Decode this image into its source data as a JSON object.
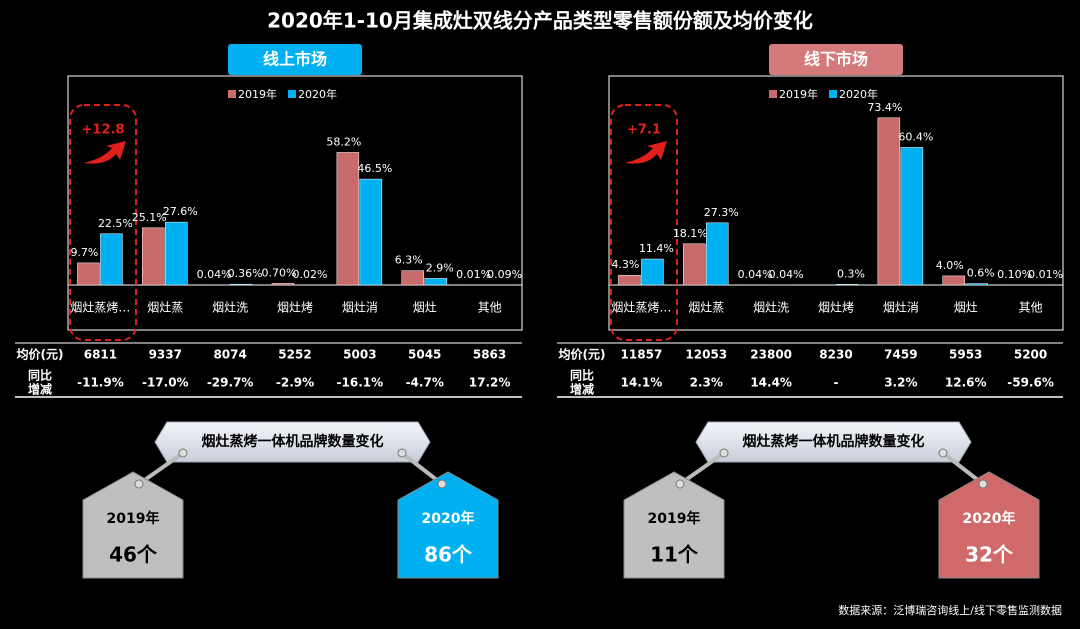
{
  "title": "2020年1-10月集成灶双线分产品类型零售额份额及均价变化",
  "source": "数据来源：泛博瑞咨询线上/线下零售监测数据",
  "chart_data": [
    {
      "type": "bar",
      "title": "线上市场",
      "title_color": "#00b0f0",
      "annotation": "+12.8",
      "categories": [
        "烟灶蒸烤…",
        "烟灶蒸",
        "烟灶洗",
        "烟灶烤",
        "烟灶消",
        "烟灶",
        "其他"
      ],
      "series": [
        {
          "name": "2019年",
          "color": "#c96b6b",
          "values": [
            9.7,
            25.1,
            0.04,
            0.7,
            58.2,
            6.3,
            0.01
          ],
          "value_labels": [
            "9.7%",
            "25.1%",
            "0.04%",
            "0.70%",
            "58.2%",
            "6.3%",
            "0.01%"
          ]
        },
        {
          "name": "2020年",
          "color": "#00b0f0",
          "values": [
            22.5,
            27.6,
            0.36,
            0.02,
            46.5,
            2.9,
            0.09
          ],
          "value_labels": [
            "22.5%",
            "27.6%",
            "0.36%",
            "0.02%",
            "46.5%",
            "2.9%",
            "0.09%"
          ]
        }
      ],
      "ylim": [
        0,
        90
      ],
      "price_label": "均价(元)",
      "prices": [
        6811,
        9337,
        8074,
        5252,
        5003,
        5045,
        5863
      ],
      "yoy_label": [
        "同比",
        "增减"
      ],
      "yoy": [
        "-11.9%",
        "-17.0%",
        "-29.7%",
        "-2.9%",
        "-16.1%",
        "-4.7%",
        "17.2%"
      ],
      "brand_title": "烟灶蒸烤一体机品牌数量变化",
      "brand_counts": [
        {
          "year": "2019年",
          "count": "46个",
          "color": "#bfbfbf"
        },
        {
          "year": "2020年",
          "count": "86个",
          "color": "#00b0f0"
        }
      ]
    },
    {
      "type": "bar",
      "title": "线下市场",
      "title_color": "#d47a7a",
      "annotation": "+7.1",
      "categories": [
        "烟灶蒸烤…",
        "烟灶蒸",
        "烟灶洗",
        "烟灶烤",
        "烟灶消",
        "烟灶",
        "其他"
      ],
      "series": [
        {
          "name": "2019年",
          "color": "#c96b6b",
          "values": [
            4.3,
            18.1,
            0.04,
            null,
            73.4,
            4.0,
            0.1
          ],
          "value_labels": [
            "4.3%",
            "18.1%",
            "0.04%",
            null,
            "73.4%",
            "4.0%",
            "0.10%"
          ]
        },
        {
          "name": "2020年",
          "color": "#00b0f0",
          "values": [
            11.4,
            27.3,
            0.04,
            0.3,
            60.4,
            0.6,
            0.01
          ],
          "value_labels": [
            "11.4%",
            "27.3%",
            "0.04%",
            "0.3%",
            "60.4%",
            "0.6%",
            "0.01%"
          ]
        }
      ],
      "ylim": [
        0,
        90
      ],
      "price_label": "均价(元)",
      "prices": [
        11857,
        12053,
        23800,
        8230,
        7459,
        5953,
        5200
      ],
      "yoy_label": [
        "同比",
        "增减"
      ],
      "yoy": [
        "14.1%",
        "2.3%",
        "14.4%",
        "-",
        "3.2%",
        "12.6%",
        "-59.6%"
      ],
      "brand_title": "烟灶蒸烤一体机品牌数量变化",
      "brand_counts": [
        {
          "year": "2019年",
          "count": "11个",
          "color": "#bfbfbf"
        },
        {
          "year": "2020年",
          "count": "32个",
          "color": "#d06a6a"
        }
      ]
    }
  ]
}
